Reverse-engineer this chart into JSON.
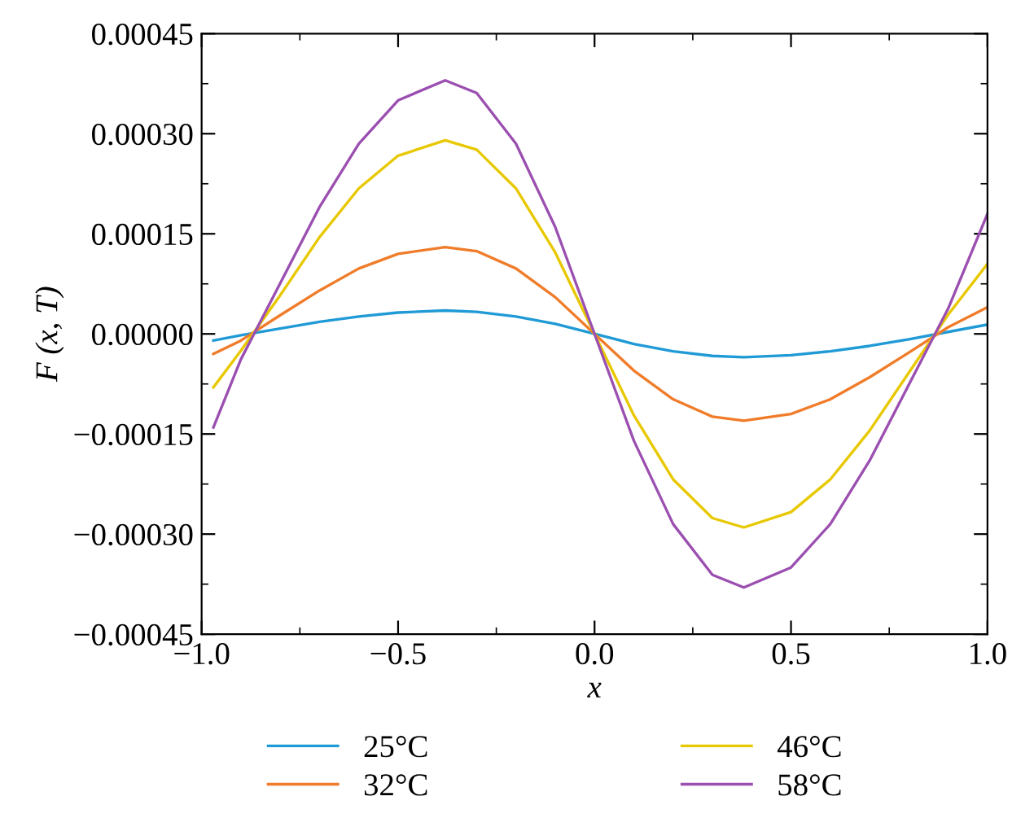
{
  "chart_data": {
    "type": "line",
    "xlabel": "x",
    "ylabel": "F (x, T)",
    "x": [
      -0.97,
      -0.9,
      -0.8,
      -0.7,
      -0.6,
      -0.5,
      -0.38,
      -0.3,
      -0.2,
      -0.1,
      0,
      0.1,
      0.2,
      0.3,
      0.38,
      0.5,
      0.6,
      0.7,
      0.8,
      0.9,
      1.0
    ],
    "series": [
      {
        "name": "25°C",
        "color": "#1f9ad6",
        "values": [
          -1e-05,
          -2e-06,
          8e-06,
          1.8e-05,
          2.6e-05,
          3.2e-05,
          3.5e-05,
          3.3e-05,
          2.6e-05,
          1.5e-05,
          0,
          -1.5e-05,
          -2.6e-05,
          -3.3e-05,
          -3.5e-05,
          -3.2e-05,
          -2.6e-05,
          -1.8e-05,
          -8e-06,
          3e-06,
          1.4e-05
        ]
      },
      {
        "name": "32°C",
        "color": "#f07c2a",
        "values": [
          -3e-05,
          -1e-05,
          2.8e-05,
          6.5e-05,
          9.8e-05,
          0.00012,
          0.00013,
          0.000124,
          9.8e-05,
          5.5e-05,
          0,
          -5.5e-05,
          -9.8e-05,
          -0.000124,
          -0.00013,
          -0.00012,
          -9.8e-05,
          -6.5e-05,
          -2.8e-05,
          1e-05,
          4e-05
        ]
      },
      {
        "name": "46°C",
        "color": "#e8c800",
        "values": [
          -8e-05,
          -2.5e-05,
          5.8e-05,
          0.000145,
          0.000218,
          0.000267,
          0.00029,
          0.000276,
          0.000218,
          0.000122,
          0,
          -0.000122,
          -0.000218,
          -0.000276,
          -0.00029,
          -0.000267,
          -0.000218,
          -0.000145,
          -5.8e-05,
          2.9e-05,
          0.000105
        ]
      },
      {
        "name": "58°C",
        "color": "#9b4fb0",
        "values": [
          -0.00014,
          -3.8e-05,
          7.6e-05,
          0.00019,
          0.000285,
          0.00035,
          0.00038,
          0.000361,
          0.000285,
          0.00016,
          0,
          -0.00016,
          -0.000285,
          -0.000361,
          -0.00038,
          -0.00035,
          -0.000285,
          -0.00019,
          -7.6e-05,
          3.8e-05,
          0.00018
        ]
      }
    ],
    "xlim": [
      -1.0,
      1.0
    ],
    "xticks": [
      {
        "value": -1.0,
        "label": "−1.0"
      },
      {
        "value": -0.5,
        "label": "−0.5"
      },
      {
        "value": 0,
        "label": "0.0"
      },
      {
        "value": 0.5,
        "label": "0.5"
      },
      {
        "value": 1.0,
        "label": "1.0"
      }
    ],
    "ylim": [
      -0.00045,
      0.00045
    ],
    "yticks": [
      {
        "value": -0.00045,
        "label": "−0.00045"
      },
      {
        "value": -0.0003,
        "label": "−0.00030"
      },
      {
        "value": -0.00015,
        "label": "−0.00015"
      },
      {
        "value": 0,
        "label": "0.00000"
      },
      {
        "value": 0.00015,
        "label": "0.00015"
      },
      {
        "value": 0.0003,
        "label": "0.00030"
      },
      {
        "value": 0.00045,
        "label": "0.00045"
      }
    ],
    "grid": false,
    "legend": "bottom",
    "marker": "none",
    "line_style": "solid"
  }
}
